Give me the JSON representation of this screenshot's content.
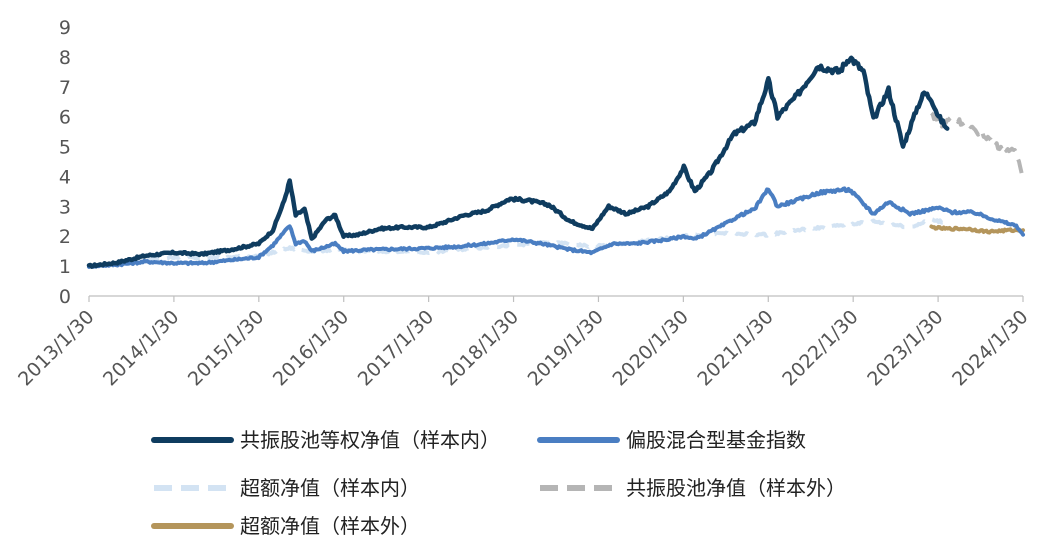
{
  "chart_data": {
    "type": "line",
    "x_ticks": [
      "2013/1/30",
      "2014/1/30",
      "2015/1/30",
      "2016/1/30",
      "2017/1/30",
      "2018/1/30",
      "2019/1/30",
      "2020/1/30",
      "2021/1/30",
      "2022/1/30",
      "2023/1/30",
      "2024/1/30"
    ],
    "y_ticks": [
      "0",
      "1",
      "2",
      "3",
      "4",
      "5",
      "6",
      "7",
      "8",
      "9"
    ],
    "ylim": [
      0,
      9
    ],
    "x_range": [
      "2013-01-30",
      "2024-01-30"
    ],
    "grid": false,
    "legend_position": "bottom",
    "series": [
      {
        "name": "共振股池等权净值（样本内）",
        "color": "#0f3c5f",
        "dash": "solid",
        "points": [
          [
            "2013-01-30",
            1.0
          ],
          [
            "2013-06-01",
            1.12
          ],
          [
            "2013-10-01",
            1.35
          ],
          [
            "2014-01-30",
            1.45
          ],
          [
            "2014-06-01",
            1.4
          ],
          [
            "2014-10-01",
            1.55
          ],
          [
            "2015-01-30",
            1.75
          ],
          [
            "2015-04-01",
            2.2
          ],
          [
            "2015-05-20",
            3.2
          ],
          [
            "2015-06-12",
            3.85
          ],
          [
            "2015-07-08",
            2.7
          ],
          [
            "2015-08-15",
            2.9
          ],
          [
            "2015-09-15",
            1.9
          ],
          [
            "2015-11-15",
            2.55
          ],
          [
            "2015-12-25",
            2.7
          ],
          [
            "2016-01-30",
            2.0
          ],
          [
            "2016-04-01",
            2.05
          ],
          [
            "2016-07-01",
            2.25
          ],
          [
            "2016-10-01",
            2.3
          ],
          [
            "2017-01-30",
            2.3
          ],
          [
            "2017-04-01",
            2.45
          ],
          [
            "2017-07-01",
            2.7
          ],
          [
            "2017-10-01",
            2.85
          ],
          [
            "2018-01-15",
            3.25
          ],
          [
            "2018-04-01",
            3.2
          ],
          [
            "2018-07-01",
            3.05
          ],
          [
            "2018-10-01",
            2.5
          ],
          [
            "2019-01-04",
            2.25
          ],
          [
            "2019-03-15",
            3.0
          ],
          [
            "2019-06-01",
            2.75
          ],
          [
            "2019-09-01",
            3.0
          ],
          [
            "2019-12-01",
            3.5
          ],
          [
            "2020-02-01",
            4.3
          ],
          [
            "2020-03-20",
            3.5
          ],
          [
            "2020-06-01",
            4.2
          ],
          [
            "2020-09-01",
            5.4
          ],
          [
            "2020-12-01",
            5.8
          ],
          [
            "2021-01-30",
            7.2
          ],
          [
            "2021-03-10",
            6.0
          ],
          [
            "2021-06-01",
            6.7
          ],
          [
            "2021-09-01",
            7.7
          ],
          [
            "2021-12-01",
            7.5
          ],
          [
            "2022-01-15",
            8.0
          ],
          [
            "2022-03-15",
            7.5
          ],
          [
            "2022-04-27",
            5.9
          ],
          [
            "2022-07-01",
            6.9
          ],
          [
            "2022-09-01",
            5.0
          ],
          [
            "2022-11-01",
            6.3
          ],
          [
            "2022-12-01",
            6.8
          ],
          [
            "2023-01-01",
            6.6
          ],
          [
            "2023-02-01",
            6.0
          ],
          [
            "2023-03-10",
            5.6
          ]
        ]
      },
      {
        "name": "偏股混合型基金指数",
        "color": "#4a7ec2",
        "dash": "solid",
        "points": [
          [
            "2013-01-30",
            1.0
          ],
          [
            "2013-06-01",
            1.05
          ],
          [
            "2013-10-01",
            1.15
          ],
          [
            "2014-01-30",
            1.1
          ],
          [
            "2014-06-01",
            1.1
          ],
          [
            "2014-10-01",
            1.2
          ],
          [
            "2015-01-30",
            1.3
          ],
          [
            "2015-04-01",
            1.7
          ],
          [
            "2015-06-12",
            2.35
          ],
          [
            "2015-07-08",
            1.75
          ],
          [
            "2015-08-15",
            1.85
          ],
          [
            "2015-09-15",
            1.5
          ],
          [
            "2015-12-25",
            1.75
          ],
          [
            "2016-01-30",
            1.5
          ],
          [
            "2016-06-01",
            1.55
          ],
          [
            "2017-01-30",
            1.6
          ],
          [
            "2017-06-01",
            1.65
          ],
          [
            "2017-10-01",
            1.75
          ],
          [
            "2018-01-30",
            1.9
          ],
          [
            "2018-06-01",
            1.75
          ],
          [
            "2018-10-01",
            1.55
          ],
          [
            "2019-01-04",
            1.45
          ],
          [
            "2019-04-01",
            1.75
          ],
          [
            "2019-07-01",
            1.75
          ],
          [
            "2019-12-01",
            1.9
          ],
          [
            "2020-02-01",
            2.0
          ],
          [
            "2020-03-20",
            1.9
          ],
          [
            "2020-07-01",
            2.3
          ],
          [
            "2020-10-01",
            2.7
          ],
          [
            "2020-12-01",
            2.9
          ],
          [
            "2021-01-30",
            3.6
          ],
          [
            "2021-03-10",
            3.0
          ],
          [
            "2021-06-01",
            3.2
          ],
          [
            "2021-09-01",
            3.45
          ],
          [
            "2021-12-01",
            3.55
          ],
          [
            "2022-01-15",
            3.55
          ],
          [
            "2022-04-27",
            2.75
          ],
          [
            "2022-07-01",
            3.15
          ],
          [
            "2022-10-01",
            2.75
          ],
          [
            "2022-12-01",
            2.85
          ],
          [
            "2023-01-30",
            2.95
          ],
          [
            "2023-04-01",
            2.8
          ],
          [
            "2023-07-01",
            2.8
          ],
          [
            "2023-10-01",
            2.55
          ],
          [
            "2024-01-01",
            2.35
          ],
          [
            "2024-01-30",
            2.05
          ]
        ]
      },
      {
        "name": "超额净值（样本内）",
        "color": "#d3e3f3",
        "dash": "dashed",
        "points": [
          [
            "2013-01-30",
            1.0
          ],
          [
            "2013-06-01",
            1.08
          ],
          [
            "2013-10-01",
            1.2
          ],
          [
            "2014-01-30",
            1.3
          ],
          [
            "2014-06-01",
            1.28
          ],
          [
            "2014-10-01",
            1.3
          ],
          [
            "2015-01-30",
            1.33
          ],
          [
            "2015-06-12",
            1.6
          ],
          [
            "2015-09-15",
            1.5
          ],
          [
            "2015-12-25",
            1.55
          ],
          [
            "2016-04-01",
            1.5
          ],
          [
            "2016-10-01",
            1.5
          ],
          [
            "2017-01-30",
            1.45
          ],
          [
            "2017-06-01",
            1.55
          ],
          [
            "2018-01-30",
            1.7
          ],
          [
            "2018-06-01",
            1.78
          ],
          [
            "2018-10-01",
            1.75
          ],
          [
            "2019-01-04",
            1.65
          ],
          [
            "2019-07-01",
            1.8
          ],
          [
            "2020-01-30",
            2.0
          ],
          [
            "2020-07-01",
            2.1
          ],
          [
            "2021-01-30",
            2.05
          ],
          [
            "2021-06-01",
            2.2
          ],
          [
            "2022-01-15",
            2.4
          ],
          [
            "2022-04-27",
            2.5
          ],
          [
            "2022-10-01",
            2.3
          ],
          [
            "2023-01-01",
            2.55
          ],
          [
            "2023-03-10",
            2.45
          ]
        ]
      },
      {
        "name": "共振股池净值（样本外）",
        "color": "#b5b5b5",
        "dash": "dashed",
        "points": [
          [
            "2023-01-01",
            6.1
          ],
          [
            "2023-02-15",
            5.7
          ],
          [
            "2023-04-01",
            6.0
          ],
          [
            "2023-06-01",
            5.7
          ],
          [
            "2023-07-15",
            5.5
          ],
          [
            "2023-09-01",
            5.3
          ],
          [
            "2023-10-15",
            5.0
          ],
          [
            "2023-12-01",
            4.9
          ],
          [
            "2024-01-01",
            4.8
          ],
          [
            "2024-01-30",
            4.0
          ]
        ]
      },
      {
        "name": "超额净值（样本外）",
        "color": "#b4955b",
        "dash": "solid",
        "points": [
          [
            "2023-01-01",
            2.3
          ],
          [
            "2023-03-01",
            2.25
          ],
          [
            "2023-06-01",
            2.25
          ],
          [
            "2023-09-01",
            2.15
          ],
          [
            "2023-12-01",
            2.2
          ],
          [
            "2024-01-30",
            2.2
          ]
        ]
      }
    ],
    "legend": [
      {
        "label": "共振股池等权净值（样本内）",
        "series": 0
      },
      {
        "label": "偏股混合型基金指数",
        "series": 1
      },
      {
        "label": "超额净值（样本内）",
        "series": 2
      },
      {
        "label": "共振股池净值（样本外）",
        "series": 3
      },
      {
        "label": "超额净值（样本外）",
        "series": 4
      }
    ]
  }
}
